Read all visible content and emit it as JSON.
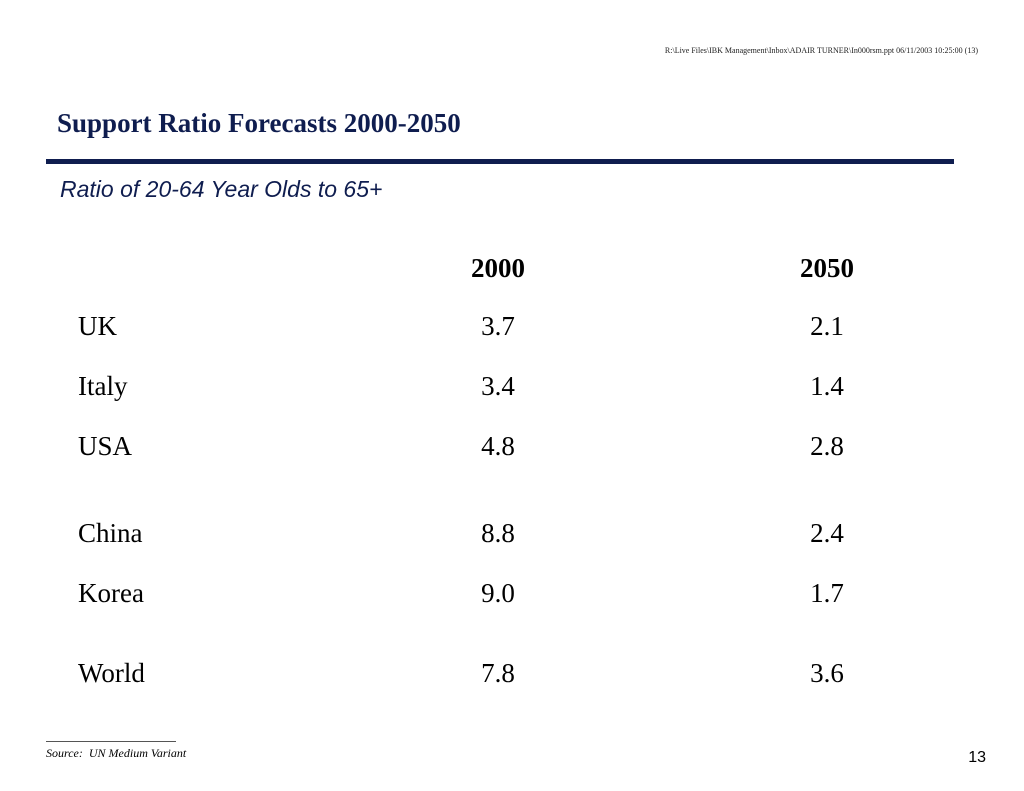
{
  "header": {
    "file_path": "R:\\Live Files\\IBK Management\\Inbox\\ADAIR TURNER\\In000rsm.ppt 06/11/2003 10:25:00 (13)"
  },
  "slide": {
    "title": "Support Ratio Forecasts 2000-2050",
    "subtitle": "Ratio of 20-64 Year Olds to 65+"
  },
  "table": {
    "columns": [
      "2000",
      "2050"
    ],
    "rows": [
      {
        "country": "UK",
        "y2000": "3.7",
        "y2050": "2.1"
      },
      {
        "country": "Italy",
        "y2000": "3.4",
        "y2050": "1.4"
      },
      {
        "country": "USA",
        "y2000": "4.8",
        "y2050": "2.8"
      },
      {
        "country": "China",
        "y2000": "8.8",
        "y2050": "2.4"
      },
      {
        "country": "Korea",
        "y2000": "9.0",
        "y2050": "1.7"
      },
      {
        "country": "World",
        "y2000": "7.8",
        "y2050": "3.6"
      }
    ]
  },
  "footer": {
    "source": "Source:  UN Medium Variant",
    "page_number": "13"
  },
  "colors": {
    "title": "#0f1d4f",
    "rule": "#0f1d4f"
  }
}
